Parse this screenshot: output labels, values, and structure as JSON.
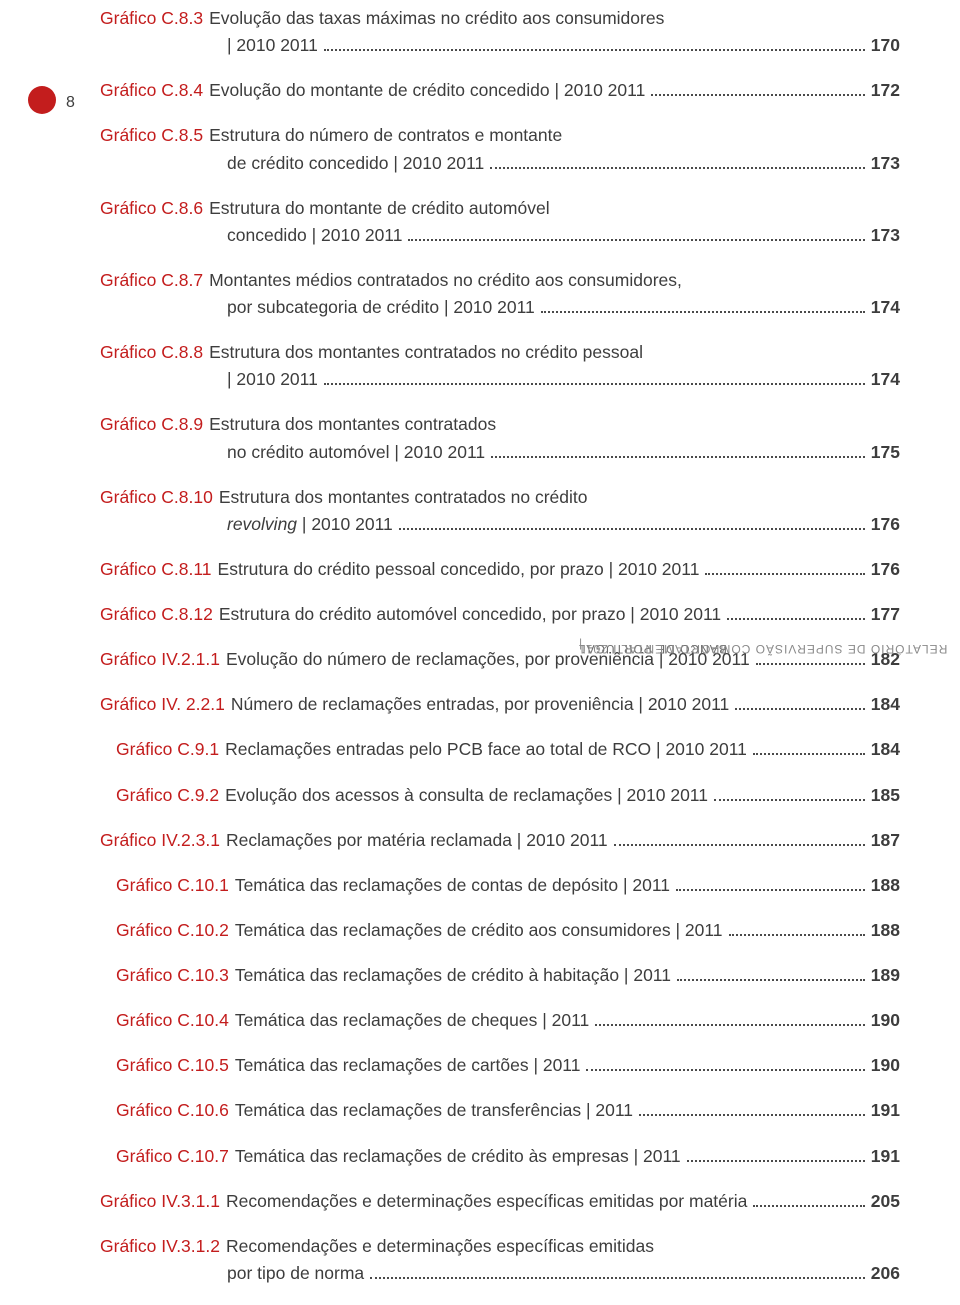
{
  "pageNumber": "8",
  "sidebarText": {
    "part1": "BANCO DE PORTUGAL",
    "separator": "|",
    "part2": "RELATÓRIO DE SUPERVISÃO COMPORTAMENTAL I 2011"
  },
  "colors": {
    "accent": "#c31d1d",
    "text": "#3d3d3d",
    "dots": "#4a4a4a",
    "sidebar": "#7a7a7a",
    "background": "#ffffff"
  },
  "entries": [
    {
      "label": "Gráfico C.8.3",
      "line1": "Evolução das taxas máximas no crédito aos consumidores",
      "line2a": "| 2010 2011",
      "page": "170",
      "indent": 0
    },
    {
      "label": "Gráfico C.8.4",
      "line1": "Evolução do montante de crédito concedido | 2010 2011",
      "page": "172",
      "indent": 0
    },
    {
      "label": "Gráfico C.8.5",
      "line1": "Estrutura do número de contratos e montante",
      "line2a": "de crédito concedido | 2010 2011",
      "page": "173",
      "indent": 0
    },
    {
      "label": "Gráfico C.8.6",
      "line1": "Estrutura do montante de crédito automóvel",
      "line2a": "concedido | 2010 2011",
      "page": "173",
      "indent": 0
    },
    {
      "label": "Gráfico C.8.7",
      "line1": "Montantes médios contratados no crédito aos consumidores,",
      "line2a": "por subcategoria de crédito | 2010 2011",
      "page": "174",
      "indent": 0
    },
    {
      "label": "Gráfico C.8.8",
      "line1": "Estrutura dos montantes contratados no crédito pessoal",
      "line2a": "| 2010 2011",
      "page": "174",
      "indent": 0
    },
    {
      "label": "Gráfico C.8.9",
      "line1": "Estrutura dos montantes contratados",
      "line2a": "no crédito automóvel | 2010 2011",
      "page": "175",
      "indent": 0
    },
    {
      "label": "Gráfico C.8.10",
      "line1": "Estrutura dos montantes contratados no crédito",
      "line2a_italic": "revolving",
      "line2b": " | 2010 2011",
      "page": "176",
      "indent": 0
    },
    {
      "label": "Gráfico C.8.11",
      "line1": "Estrutura do crédito pessoal concedido, por prazo | 2010 2011",
      "page": "176",
      "indent": 0
    },
    {
      "label": "Gráfico C.8.12",
      "line1": "Estrutura do crédito automóvel concedido, por prazo | 2010 2011",
      "page": "177",
      "indent": 0
    },
    {
      "label": "Gráfico IV.2.1.1",
      "line1": "Evolução do número de reclamações, por proveniência | 2010 2011",
      "page": "182",
      "indent": 0
    },
    {
      "label": "Gráfico IV. 2.2.1",
      "line1": "Número de reclamações entradas, por proveniência | 2010 2011",
      "page": "184",
      "indent": 0
    },
    {
      "label": "Gráfico C.9.1",
      "line1": "Reclamações entradas pelo PCB face ao total de RCO | 2010 2011",
      "page": "184",
      "indent": 1
    },
    {
      "label": "Gráfico C.9.2",
      "line1": "Evolução dos acessos à consulta de reclamações | 2010 2011",
      "page": "185",
      "indent": 1
    },
    {
      "label": "Gráfico IV.2.3.1",
      "line1": "Reclamações por matéria reclamada | 2010 2011",
      "page": "187",
      "indent": 0
    },
    {
      "label": "Gráfico C.10.1",
      "line1": "Temática das reclamações de contas de depósito | 2011",
      "page": "188",
      "indent": 1
    },
    {
      "label": "Gráfico C.10.2",
      "line1": "Temática das reclamações de crédito aos consumidores | 2011",
      "page": "188",
      "indent": 1
    },
    {
      "label": "Gráfico C.10.3",
      "line1": "Temática das reclamações de crédito à habitação | 2011",
      "page": "189",
      "indent": 1
    },
    {
      "label": "Gráfico C.10.4",
      "line1": "Temática das reclamações de cheques | 2011",
      "page": "190",
      "indent": 1
    },
    {
      "label": "Gráfico C.10.5",
      "line1": "Temática das reclamações de cartões | 2011",
      "page": "190",
      "indent": 1
    },
    {
      "label": "Gráfico C.10.6",
      "line1": "Temática das reclamações de transferências | 2011",
      "page": "191",
      "indent": 1
    },
    {
      "label": "Gráfico C.10.7",
      "line1": "Temática das reclamações de crédito às empresas | 2011",
      "page": "191",
      "indent": 1
    },
    {
      "label": "Gráfico IV.3.1.1",
      "line1": "Recomendações e determinações específicas emitidas por matéria",
      "page": "205",
      "indent": 0
    },
    {
      "label": "Gráfico IV.3.1.2",
      "line1": "Recomendações e determinações específicas emitidas",
      "line2a": "por tipo de norma",
      "page": "206",
      "indent": 0
    }
  ]
}
